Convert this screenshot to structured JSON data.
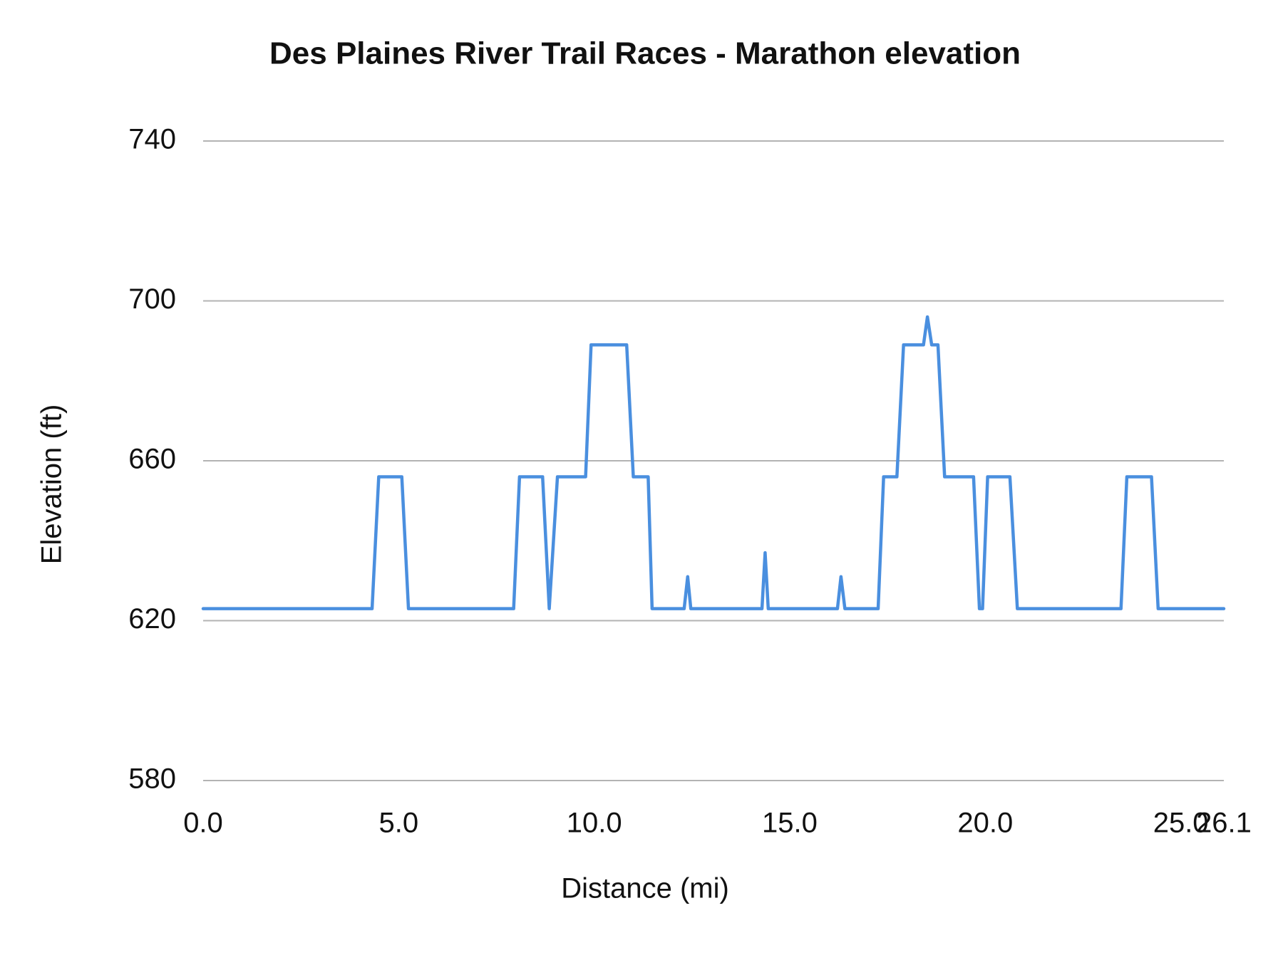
{
  "chart_data": {
    "type": "line",
    "title": "Des Plaines River Trail Races - Marathon elevation",
    "x_label": "Distance (mi)",
    "y_label": "Elevation (ft)",
    "xlim": [
      0,
      26.1
    ],
    "ylim": [
      580,
      740
    ],
    "xticks": [
      {
        "value": 0,
        "label": "0.0"
      },
      {
        "value": 5,
        "label": "5.0"
      },
      {
        "value": 10,
        "label": "10.0"
      },
      {
        "value": 15,
        "label": "15.0"
      },
      {
        "value": 20,
        "label": "20.0"
      },
      {
        "value": 25,
        "label": "25.0"
      },
      {
        "value": 26.1,
        "label": "26.1"
      }
    ],
    "yticks": [
      580,
      620,
      660,
      700,
      740
    ],
    "grid": true,
    "series": [
      {
        "name": "Elevation",
        "color": "#4a8fdf",
        "x": [
          0,
          4.32,
          4.49,
          5.08,
          5.25,
          7.94,
          8.09,
          8.68,
          8.85,
          9.06,
          9.78,
          9.92,
          10.83,
          11.0,
          11.38,
          11.48,
          12.3,
          12.39,
          12.47,
          14.29,
          14.37,
          14.45,
          16.22,
          16.31,
          16.41,
          17.26,
          17.4,
          17.74,
          17.91,
          18.42,
          18.52,
          18.63,
          18.79,
          18.96,
          19.7,
          19.85,
          19.93,
          20.06,
          20.63,
          20.82,
          23.47,
          23.62,
          24.25,
          24.42,
          26.1
        ],
        "values": [
          623,
          623,
          656,
          656,
          623,
          623,
          656,
          656,
          623,
          656,
          656,
          689,
          689,
          656,
          656,
          623,
          623,
          631,
          623,
          623,
          637,
          623,
          623,
          631,
          623,
          623,
          656,
          656,
          689,
          689,
          696,
          689,
          689,
          656,
          656,
          623,
          623,
          656,
          656,
          623,
          623,
          656,
          656,
          623,
          623
        ]
      }
    ]
  }
}
